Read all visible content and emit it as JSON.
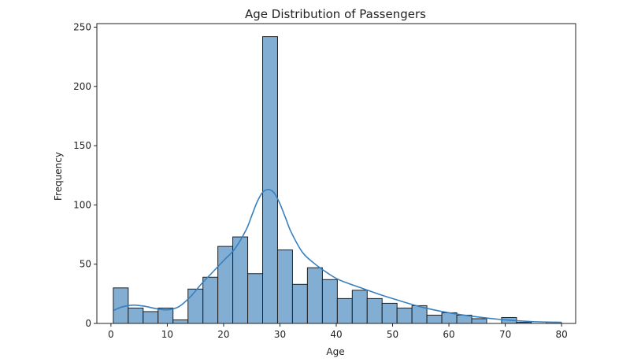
{
  "chart_data": {
    "type": "bar",
    "title": "Age Distribution of Passengers",
    "xlabel": "Age",
    "ylabel": "Frequency",
    "xlim": [
      -2.5,
      82.5
    ],
    "ylim": [
      0,
      253
    ],
    "xticks": [
      0,
      10,
      20,
      30,
      40,
      50,
      60,
      70,
      80
    ],
    "yticks": [
      0,
      50,
      100,
      150,
      200,
      250
    ],
    "bin_edges": [
      0.42,
      3.07,
      5.72,
      8.37,
      11.02,
      13.68,
      16.33,
      18.98,
      21.63,
      24.28,
      26.93,
      29.58,
      32.23,
      34.88,
      37.54,
      40.19,
      42.84,
      45.49,
      48.14,
      50.79,
      53.44,
      56.09,
      58.74,
      61.4,
      64.05,
      66.7,
      69.35,
      72.0,
      74.65,
      77.3,
      79.95
    ],
    "counts": [
      30,
      13,
      10,
      13,
      3,
      29,
      39,
      65,
      73,
      42,
      242,
      62,
      33,
      47,
      37,
      21,
      28,
      21,
      17,
      13,
      15,
      7,
      9,
      7,
      4,
      0,
      5,
      1,
      0,
      1
    ],
    "kde": {
      "x": [
        0.5,
        2,
        4,
        6,
        8,
        10,
        12,
        14,
        16,
        18,
        20,
        22,
        24,
        25,
        26,
        27,
        28,
        29,
        30,
        31,
        32,
        34,
        36,
        38,
        40,
        42,
        45,
        48,
        50,
        55,
        60,
        65,
        70,
        75,
        80
      ],
      "y": [
        11,
        14,
        15.5,
        14.5,
        12.5,
        11.5,
        14,
        22,
        33,
        43,
        53,
        63,
        79,
        91,
        103,
        111,
        113,
        110,
        101,
        89,
        77,
        60,
        51,
        44,
        38,
        34,
        29,
        24,
        21,
        14,
        9,
        5.5,
        3,
        1.5,
        1
      ]
    },
    "colors": {
      "bar_fill": "#82aed3",
      "bar_edge": "#1f1f1f",
      "kde_line": "#3780bf"
    },
    "grid": false
  }
}
